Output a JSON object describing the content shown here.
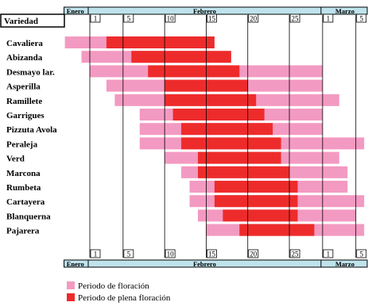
{
  "chart_data": {
    "type": "bar",
    "header_label": "Variedad",
    "month_labels": {
      "jan": "Enero",
      "feb": "Febrero",
      "mar": "Marzo"
    },
    "tick_labels": [
      {
        "label": "1",
        "day": 1
      },
      {
        "label": "5",
        "day": 5
      },
      {
        "label": "10",
        "day": 10
      },
      {
        "label": "15",
        "day": 15
      },
      {
        "label": "20",
        "day": 20
      },
      {
        "label": "25",
        "day": 25
      },
      {
        "label": "1",
        "day": 29
      },
      {
        "label": "5",
        "day": 33
      }
    ],
    "varieties": [
      "Cavaliera",
      "Abizanda",
      "Desmayo lar.",
      "Asperilla",
      "Ramillete",
      "Garrigues",
      "Pizzuta Avola",
      "Peraleja",
      "Verd",
      "Marcona",
      "Rumbeta",
      "Cartayera",
      "Blanquerna",
      "Pajarera"
    ],
    "series": [
      {
        "name": "Periodo de floración",
        "color": "#f39ac2",
        "ranges": [
          [
            -2,
            11
          ],
          [
            0,
            15
          ],
          [
            1,
            29
          ],
          [
            3,
            29
          ],
          [
            4,
            31
          ],
          [
            7,
            29
          ],
          [
            7,
            29
          ],
          [
            7,
            34
          ],
          [
            10,
            31
          ],
          [
            12,
            32
          ],
          [
            13,
            32
          ],
          [
            13,
            34
          ],
          [
            14,
            33
          ],
          [
            15,
            34
          ]
        ]
      },
      {
        "name": "Periodo de plena floración",
        "color": "#ee2b2b",
        "ranges": [
          [
            3,
            16
          ],
          [
            6,
            18
          ],
          [
            8,
            19
          ],
          [
            10,
            20
          ],
          [
            10,
            21
          ],
          [
            11,
            22
          ],
          [
            12,
            23
          ],
          [
            12,
            24
          ],
          [
            14,
            24
          ],
          [
            14,
            25
          ],
          [
            16,
            26
          ],
          [
            16,
            26
          ],
          [
            17,
            26
          ],
          [
            19,
            28
          ]
        ]
      }
    ],
    "legend": [
      {
        "label": "Periodo de floración",
        "color": "#f39ac2"
      },
      {
        "label": "Periodo de plena floración",
        "color": "#ee2b2b"
      }
    ],
    "header_color": "#bfe3ec"
  }
}
